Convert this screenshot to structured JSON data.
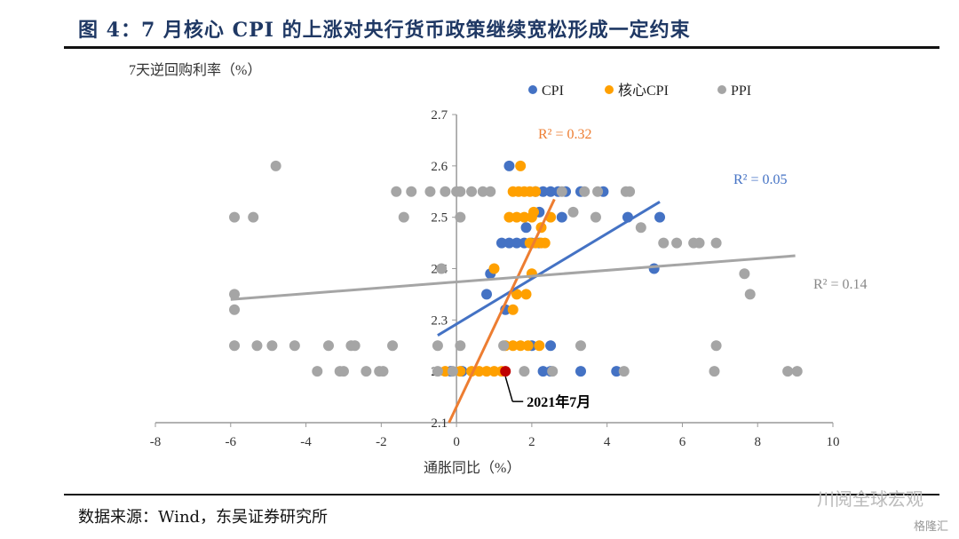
{
  "header": {
    "title": "图 4：7 月核心 CPI 的上涨对央行货币政策继续宽松形成一定约束"
  },
  "footer": {
    "source": "数据来源：Wind，东吴证券研究所",
    "watermark": "川阅全球宏观",
    "watermark2": "格隆汇"
  },
  "chart_data": {
    "type": "scatter",
    "ylabel": "7天逆回购利率（%）",
    "xlabel": "通胀同比（%）",
    "xlim": [
      -8,
      10
    ],
    "ylim": [
      2.1,
      2.7
    ],
    "xticks": [
      "-8",
      "-6",
      "-4",
      "-2",
      "0",
      "2",
      "4",
      "6",
      "8",
      "10"
    ],
    "yticks": [
      "2.1",
      "2.2",
      "2.3",
      "2.4",
      "2.5",
      "2.6",
      "2.7"
    ],
    "legend": {
      "placement": "top-right",
      "entries": [
        "CPI",
        "核心CPI",
        "PPI"
      ]
    },
    "annotation": {
      "label": "2021年7月",
      "x": 1.3,
      "y": 2.2,
      "color": "#c00000"
    },
    "series": [
      {
        "name": "CPI",
        "color": "#4472c4",
        "r2": "R² = 0.05",
        "trend": [
          [
            -0.5,
            2.27
          ],
          [
            5.4,
            2.53
          ]
        ],
        "points": [
          [
            1.4,
            2.6
          ],
          [
            2.1,
            2.55
          ],
          [
            2.3,
            2.55
          ],
          [
            2.5,
            2.55
          ],
          [
            2.7,
            2.55
          ],
          [
            2.9,
            2.55
          ],
          [
            3.3,
            2.55
          ],
          [
            3.9,
            2.55
          ],
          [
            2.8,
            2.5
          ],
          [
            4.55,
            2.5
          ],
          [
            5.4,
            2.5
          ],
          [
            2.2,
            2.51
          ],
          [
            1.85,
            2.48
          ],
          [
            1.2,
            2.45
          ],
          [
            1.4,
            2.45
          ],
          [
            1.6,
            2.45
          ],
          [
            1.8,
            2.45
          ],
          [
            2.0,
            2.45
          ],
          [
            2.2,
            2.45
          ],
          [
            5.25,
            2.4
          ],
          [
            0.9,
            2.39
          ],
          [
            0.8,
            2.35
          ],
          [
            1.3,
            2.32
          ],
          [
            2.0,
            2.25
          ],
          [
            2.5,
            2.25
          ],
          [
            -0.15,
            2.2
          ],
          [
            0.15,
            2.2
          ],
          [
            2.3,
            2.2
          ],
          [
            2.5,
            2.2
          ],
          [
            3.3,
            2.2
          ],
          [
            4.25,
            2.2
          ]
        ]
      },
      {
        "name": "核心CPI",
        "color": "#ffa000",
        "r2": "R² = 0.32",
        "trendColor": "#ed7d31",
        "trend": [
          [
            -0.2,
            2.1
          ],
          [
            2.6,
            2.535
          ]
        ],
        "points": [
          [
            1.7,
            2.6
          ],
          [
            1.5,
            2.55
          ],
          [
            1.65,
            2.55
          ],
          [
            1.8,
            2.55
          ],
          [
            1.95,
            2.55
          ],
          [
            2.1,
            2.55
          ],
          [
            1.4,
            2.5
          ],
          [
            1.6,
            2.5
          ],
          [
            1.8,
            2.5
          ],
          [
            2.0,
            2.5
          ],
          [
            2.5,
            2.5
          ],
          [
            2.05,
            2.51
          ],
          [
            2.25,
            2.48
          ],
          [
            1.95,
            2.45
          ],
          [
            2.1,
            2.45
          ],
          [
            2.25,
            2.45
          ],
          [
            2.35,
            2.45
          ],
          [
            1.0,
            2.4
          ],
          [
            2.0,
            2.39
          ],
          [
            1.6,
            2.35
          ],
          [
            1.85,
            2.35
          ],
          [
            1.5,
            2.32
          ],
          [
            1.3,
            2.25
          ],
          [
            1.5,
            2.25
          ],
          [
            1.7,
            2.25
          ],
          [
            1.9,
            2.25
          ],
          [
            2.2,
            2.25
          ],
          [
            -0.3,
            2.2
          ],
          [
            0.1,
            2.2
          ],
          [
            0.4,
            2.2
          ],
          [
            0.6,
            2.2
          ],
          [
            0.8,
            2.2
          ],
          [
            1.0,
            2.2
          ],
          [
            1.2,
            2.2
          ]
        ]
      },
      {
        "name": "PPI",
        "color": "#a5a5a5",
        "r2": "R² = 0.14",
        "trend": [
          [
            -6,
            2.34
          ],
          [
            9,
            2.425
          ]
        ],
        "points": [
          [
            -4.8,
            2.6
          ],
          [
            -1.6,
            2.55
          ],
          [
            -1.2,
            2.55
          ],
          [
            -0.7,
            2.55
          ],
          [
            -0.3,
            2.55
          ],
          [
            0,
            2.55
          ],
          [
            0.1,
            2.55
          ],
          [
            0.4,
            2.55
          ],
          [
            0.7,
            2.55
          ],
          [
            0.9,
            2.55
          ],
          [
            2.8,
            2.55
          ],
          [
            3.4,
            2.55
          ],
          [
            3.75,
            2.55
          ],
          [
            4.5,
            2.55
          ],
          [
            4.6,
            2.55
          ],
          [
            -5.9,
            2.5
          ],
          [
            -5.4,
            2.5
          ],
          [
            -1.4,
            2.5
          ],
          [
            0.1,
            2.5
          ],
          [
            3.1,
            2.51
          ],
          [
            3.7,
            2.5
          ],
          [
            4.9,
            2.48
          ],
          [
            5.5,
            2.45
          ],
          [
            5.85,
            2.45
          ],
          [
            6.3,
            2.45
          ],
          [
            6.45,
            2.45
          ],
          [
            6.9,
            2.45
          ],
          [
            -0.4,
            2.4
          ],
          [
            7.65,
            2.39
          ],
          [
            7.8,
            2.35
          ],
          [
            -5.9,
            2.35
          ],
          [
            -5.9,
            2.32
          ],
          [
            -5.9,
            2.25
          ],
          [
            -5.3,
            2.25
          ],
          [
            -4.9,
            2.25
          ],
          [
            -4.3,
            2.25
          ],
          [
            -3.4,
            2.25
          ],
          [
            -2.8,
            2.25
          ],
          [
            -2.7,
            2.25
          ],
          [
            -1.7,
            2.25
          ],
          [
            -0.5,
            2.25
          ],
          [
            0.1,
            2.25
          ],
          [
            1.25,
            2.25
          ],
          [
            3.3,
            2.25
          ],
          [
            6.9,
            2.25
          ],
          [
            -3.7,
            2.2
          ],
          [
            -3.1,
            2.2
          ],
          [
            -3.0,
            2.2
          ],
          [
            -2.4,
            2.2
          ],
          [
            -2.05,
            2.2
          ],
          [
            -1.95,
            2.2
          ],
          [
            -0.5,
            2.2
          ],
          [
            -0.1,
            2.2
          ],
          [
            1.8,
            2.2
          ],
          [
            2.55,
            2.2
          ],
          [
            4.45,
            2.2
          ],
          [
            6.85,
            2.2
          ],
          [
            8.8,
            2.2
          ],
          [
            9.05,
            2.2
          ]
        ]
      }
    ]
  }
}
